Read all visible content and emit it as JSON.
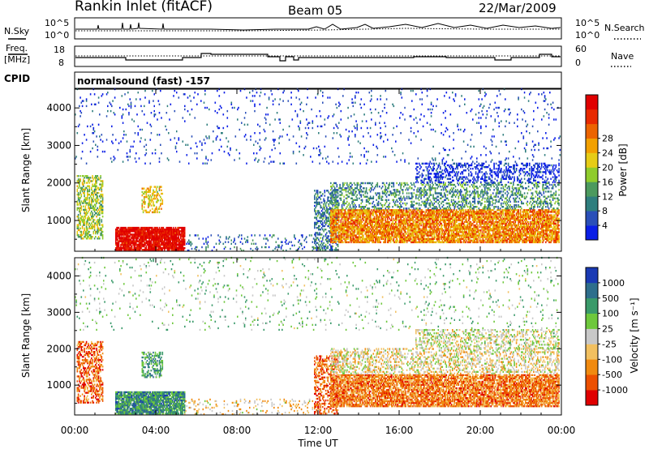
{
  "header": {
    "station": "Rankin Inlet (fitACF)",
    "beam": "Beam 05",
    "date": "22/Mar/2009"
  },
  "noise_panel": {
    "left_label": "N.Sky",
    "left_ticks": [
      "10^5",
      "10^0"
    ],
    "right_label": "N.Search",
    "right_ticks": [
      "10^5",
      "10^0"
    ],
    "right_line_style": "dotted"
  },
  "freq_panel": {
    "left_label_top": "Freq.",
    "left_label_bottom": "[MHz]",
    "left_ticks": [
      "18",
      "8"
    ],
    "right_label": "Nave",
    "right_ticks": [
      "60",
      "0"
    ],
    "right_line_style": "dotted"
  },
  "cpid": {
    "label": "CPID",
    "mode": "normalsound (fast) -157"
  },
  "chart_data": [
    {
      "type": "heatmap",
      "quantity": "Power",
      "x_label": "",
      "y_label": "Slant Range [km]",
      "x_range_hours": [
        0,
        24
      ],
      "y_range_km": [
        180,
        4500
      ],
      "y_ticks": [
        1000,
        2000,
        3000,
        4000
      ],
      "colorbar_label": "Power [dB]",
      "colorbar_ticks": [
        "4",
        "8",
        "12",
        "16",
        "20",
        "24",
        "28"
      ],
      "colorbar_colors": [
        "#0a1ee6",
        "#2a4fb8",
        "#2f7e7e",
        "#4c9a5e",
        "#8fcc2c",
        "#e6cc16",
        "#f2a000",
        "#ec6400",
        "#e82a00",
        "#e00000"
      ],
      "scatter_regions": [
        {
          "t0": 0.1,
          "t1": 1.4,
          "r0": 500,
          "r1": 2200,
          "level": 0.45,
          "density": 0.5
        },
        {
          "t0": 2.0,
          "t1": 5.4,
          "r0": 200,
          "r1": 800,
          "level": 0.97,
          "density": 0.9
        },
        {
          "t0": 3.3,
          "t1": 4.3,
          "r0": 1200,
          "r1": 1900,
          "level": 0.55,
          "density": 0.45
        },
        {
          "t0": 5.4,
          "t1": 11.8,
          "r0": 180,
          "r1": 600,
          "level": 0.2,
          "density": 0.12
        },
        {
          "t0": 11.8,
          "t1": 13.0,
          "r0": 200,
          "r1": 1800,
          "level": 0.25,
          "density": 0.45
        },
        {
          "t0": 12.6,
          "t1": 23.9,
          "r0": 400,
          "r1": 1300,
          "level": 0.7,
          "density": 0.8
        },
        {
          "t0": 12.6,
          "t1": 23.9,
          "r0": 1300,
          "r1": 2000,
          "level": 0.3,
          "density": 0.35
        },
        {
          "t0": 16.8,
          "t1": 23.9,
          "r0": 2000,
          "r1": 2500,
          "level": 0.05,
          "density": 0.35
        },
        {
          "t0": 0.0,
          "t1": 24.0,
          "r0": 2500,
          "r1": 4500,
          "level": 0.1,
          "density": 0.04
        }
      ]
    },
    {
      "type": "heatmap",
      "quantity": "Velocity",
      "x_label": "Time UT",
      "y_label": "Slant Range [km]",
      "x_range_hours": [
        0,
        24
      ],
      "x_ticks": [
        "00:00",
        "04:00",
        "08:00",
        "12:00",
        "16:00",
        "20:00",
        "00:00"
      ],
      "y_range_km": [
        180,
        4500
      ],
      "y_ticks": [
        1000,
        2000,
        3000,
        4000
      ],
      "colorbar_label": "Velocity [m s⁻¹]",
      "colorbar_ticks": [
        "-1000",
        "-500",
        "-100",
        "-25",
        "25",
        "100",
        "500",
        "1000"
      ],
      "colorbar_colors": [
        "#e00000",
        "#ec5000",
        "#f08a10",
        "#f2c060",
        "#c8c8c8",
        "#6ec83c",
        "#3a9a6a",
        "#2e6e8c",
        "#1a3ab4"
      ],
      "scatter_regions": [
        {
          "t0": 0.1,
          "t1": 1.4,
          "r0": 500,
          "r1": 2200,
          "level": 0.2,
          "density": 0.5
        },
        {
          "t0": 2.0,
          "t1": 5.4,
          "r0": 200,
          "r1": 800,
          "level": 0.75,
          "density": 0.9
        },
        {
          "t0": 3.3,
          "t1": 4.3,
          "r0": 1200,
          "r1": 1900,
          "level": 0.7,
          "density": 0.45
        },
        {
          "t0": 5.4,
          "t1": 11.8,
          "r0": 180,
          "r1": 600,
          "level": 0.4,
          "density": 0.12
        },
        {
          "t0": 11.8,
          "t1": 13.0,
          "r0": 200,
          "r1": 1800,
          "level": 0.2,
          "density": 0.45
        },
        {
          "t0": 12.6,
          "t1": 23.9,
          "r0": 400,
          "r1": 1300,
          "level": 0.25,
          "density": 0.8
        },
        {
          "t0": 12.6,
          "t1": 23.9,
          "r0": 1300,
          "r1": 2000,
          "level": 0.45,
          "density": 0.35
        },
        {
          "t0": 16.8,
          "t1": 23.9,
          "r0": 2000,
          "r1": 2500,
          "level": 0.5,
          "density": 0.35
        },
        {
          "t0": 0.0,
          "t1": 24.0,
          "r0": 2500,
          "r1": 4500,
          "level": 0.6,
          "density": 0.04
        }
      ]
    }
  ]
}
